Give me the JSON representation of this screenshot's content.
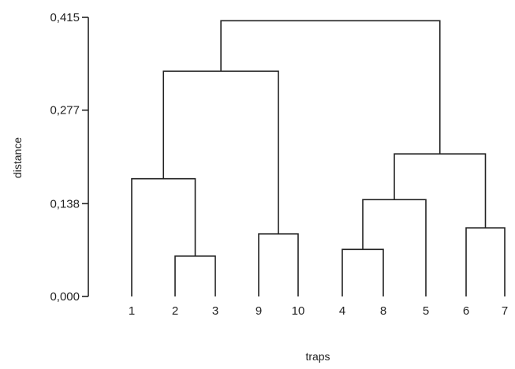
{
  "chart_data": {
    "type": "dendrogram",
    "ylabel": "distance",
    "xlabel": "traps",
    "ylim": [
      0,
      0.415
    ],
    "y_ticks": [
      {
        "value": 0,
        "label": "0,000"
      },
      {
        "value": 0.138,
        "label": "0,138"
      },
      {
        "value": 0.277,
        "label": "0,277"
      },
      {
        "value": 0.415,
        "label": "0,415"
      }
    ],
    "leaf_order": [
      "1",
      "2",
      "3",
      "9",
      "10",
      "4",
      "8",
      "5",
      "6",
      "7"
    ],
    "merges": [
      {
        "id": "A",
        "children": [
          "2",
          "3"
        ],
        "height": 0.06
      },
      {
        "id": "B",
        "children": [
          "9",
          "10"
        ],
        "height": 0.093
      },
      {
        "id": "C",
        "children": [
          "4",
          "8"
        ],
        "height": 0.07
      },
      {
        "id": "D",
        "children": [
          "6",
          "7"
        ],
        "height": 0.102
      },
      {
        "id": "E",
        "children": [
          "C",
          "5"
        ],
        "height": 0.144
      },
      {
        "id": "F",
        "children": [
          "1",
          "A"
        ],
        "height": 0.175
      },
      {
        "id": "G",
        "children": [
          "E",
          "D"
        ],
        "height": 0.212
      },
      {
        "id": "H",
        "children": [
          "F",
          "B"
        ],
        "height": 0.335
      },
      {
        "id": "I",
        "children": [
          "H",
          "G"
        ],
        "height": 0.41
      }
    ]
  }
}
